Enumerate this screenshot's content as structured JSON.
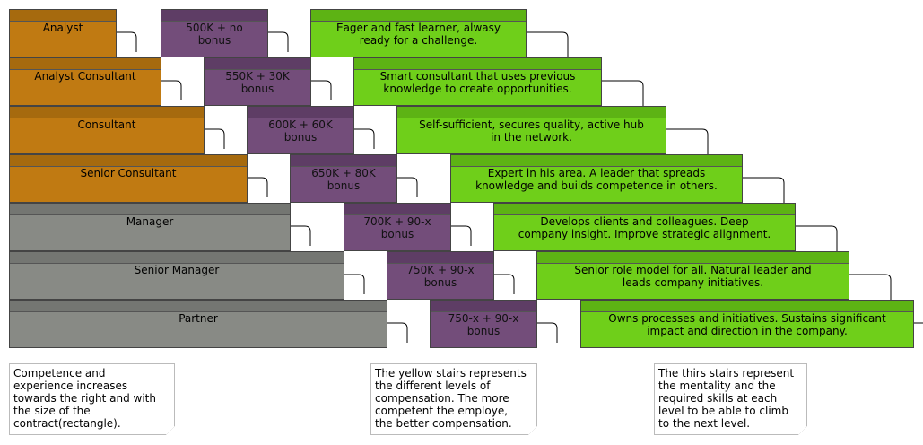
{
  "roles": [
    {
      "label": "Analyst"
    },
    {
      "label": "Analyst Consultant"
    },
    {
      "label": "Consultant"
    },
    {
      "label": "Senior Consultant"
    },
    {
      "label": "Manager"
    },
    {
      "label": "Senior Manager"
    },
    {
      "label": "Partner"
    }
  ],
  "compensation": [
    {
      "line1": "500K + no",
      "line2": "bonus"
    },
    {
      "line1": "550K + 30K",
      "line2": "bonus"
    },
    {
      "line1": "600K + 60K",
      "line2": "bonus"
    },
    {
      "line1": "650K + 80K",
      "line2": "bonus"
    },
    {
      "line1": "700K + 90-x",
      "line2": "bonus"
    },
    {
      "line1": "750K + 90-x",
      "line2": "bonus"
    },
    {
      "line1": "750-x + 90-x",
      "line2": "bonus"
    }
  ],
  "skills": [
    {
      "line1": "Eager and fast learner, alwasy",
      "line2": "ready for a challenge."
    },
    {
      "line1": "Smart consultant that uses previous",
      "line2": "knowledge to create opportunities."
    },
    {
      "line1": "Self-sufficient, secures quality, active hub",
      "line2": "in the network."
    },
    {
      "line1": "Expert in his area. A leader that spreads",
      "line2": "knowledge and builds competence in others."
    },
    {
      "line1": "Develops clients and colleagues. Deep",
      "line2": "company insight. Improve strategic alignment."
    },
    {
      "line1": "Senior role model for all. Natural leader and",
      "line2": "leads company initiatives."
    },
    {
      "line1": "Owns processes and initiatives. Sustains significant",
      "line2": "impact and direction in the company."
    }
  ],
  "notes": [
    {
      "lines": [
        "Competence and",
        "experience increases",
        "towards the right and with",
        "the size of the",
        "contract(rectangle)."
      ]
    },
    {
      "lines": [
        "The yellow stairs represents",
        "the different levels of",
        "compensation. The more",
        "competent the employe,",
        "the better compensation."
      ]
    },
    {
      "lines": [
        "The thirs stairs represent",
        "the mentality and the",
        "required skills at each",
        "level to be able to climb",
        "to the next level."
      ]
    }
  ]
}
